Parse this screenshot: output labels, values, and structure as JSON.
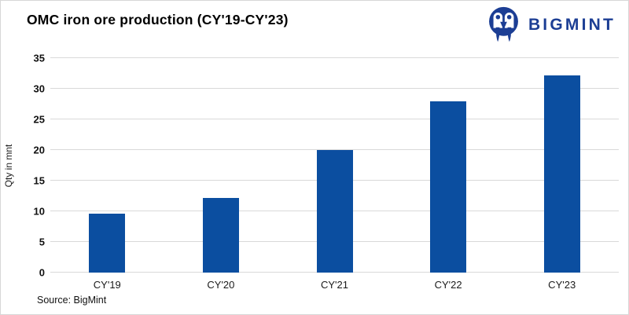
{
  "header": {
    "title": "OMC iron ore production (CY'19-CY'23)"
  },
  "logo": {
    "text": "BIGMINT",
    "icon": "bigmint-owl-icon",
    "color": "#1c3e94"
  },
  "chart_data": {
    "type": "bar",
    "title": "OMC iron ore production (CY'19-CY'23)",
    "categories": [
      "CY'19",
      "CY'20",
      "CY'21",
      "CY'22",
      "CY'23"
    ],
    "values": [
      9.6,
      12.2,
      20.0,
      28.0,
      32.2
    ],
    "xlabel": "",
    "ylabel": "Qty in mnt",
    "ylim": [
      0,
      35
    ],
    "yticks": [
      0,
      5,
      10,
      15,
      20,
      25,
      30,
      35
    ],
    "grid": true,
    "legend": "none",
    "bar_color": "#0b4ea0",
    "gridline_color": "#d9d9d9"
  },
  "footer": {
    "source": "Source: BigMint"
  }
}
